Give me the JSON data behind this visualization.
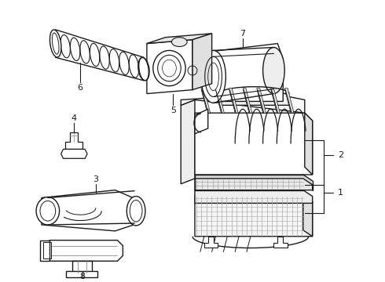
{
  "background_color": "#ffffff",
  "line_color": "#1a1a1a",
  "line_width": 1.0,
  "label_fontsize": 8,
  "figsize": [
    4.9,
    3.6
  ],
  "dpi": 100
}
